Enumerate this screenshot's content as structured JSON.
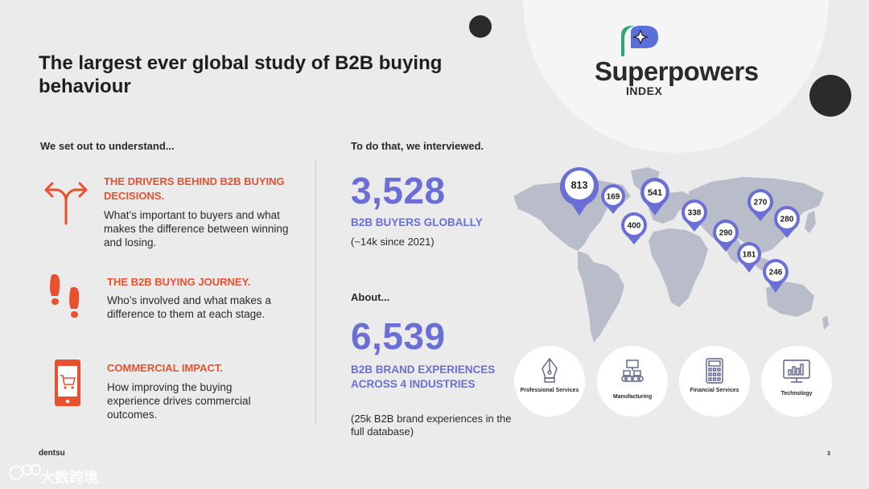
{
  "title": "The largest ever global study of B2B buying behaviour",
  "logo": {
    "word": "Superpowers",
    "sub": "INDEX",
    "accent_colors": [
      "#2aa876",
      "#5a6fd8"
    ]
  },
  "left": {
    "heading": "We set out to understand...",
    "items": [
      {
        "icon": "diverging-arrows-icon",
        "heading": "THE DRIVERS BEHIND B2B BUYING DECISIONS.",
        "text": "What’s important to buyers and what makes the difference between winning and losing."
      },
      {
        "icon": "footprints-icon",
        "heading": "THE B2B BUYING JOURNEY.",
        "text": "Who’s involved and what makes a difference to them at each stage."
      },
      {
        "icon": "mobile-cart-icon",
        "heading": "COMMERCIAL IMPACT.",
        "text": "How improving the buying experience drives commercial outcomes."
      }
    ]
  },
  "middle": {
    "heading": "To do that, we interviewed.",
    "stat1": {
      "value": "3,528",
      "label": "B2B BUYERS GLOBALLY",
      "sub": "(~14k since 2021)"
    },
    "about": "About...",
    "stat2": {
      "value": "6,539",
      "label": "B2B BRAND EXPERIENCES ACROSS 4 INDUSTRIES",
      "sub": "(25k B2B brand experiences in the full database)"
    }
  },
  "map_pins": [
    {
      "value": "813",
      "size": "large"
    },
    {
      "value": "169",
      "size": "small"
    },
    {
      "value": "541",
      "size": "medium"
    },
    {
      "value": "400",
      "size": "small"
    },
    {
      "value": "338",
      "size": "small"
    },
    {
      "value": "270",
      "size": "small"
    },
    {
      "value": "280",
      "size": "small"
    },
    {
      "value": "290",
      "size": "small"
    },
    {
      "value": "181",
      "size": "small"
    },
    {
      "value": "246",
      "size": "small"
    }
  ],
  "industries": [
    {
      "icon": "pen-nib-icon",
      "label": "Professional Services"
    },
    {
      "icon": "factory-conveyor-icon",
      "label": "Manufacturing"
    },
    {
      "icon": "calculator-icon",
      "label": "Financial Services"
    },
    {
      "icon": "monitor-chart-icon",
      "label": "Technology"
    }
  ],
  "footer": {
    "brand": "dentsu",
    "page": "3"
  },
  "watermark": {
    "text": "大数跨境"
  },
  "colors": {
    "accent_orange": "#e8502e",
    "accent_purple": "#6a6fd6",
    "map_grey": "#b8bdc9",
    "pin": "#6a6fd6"
  }
}
